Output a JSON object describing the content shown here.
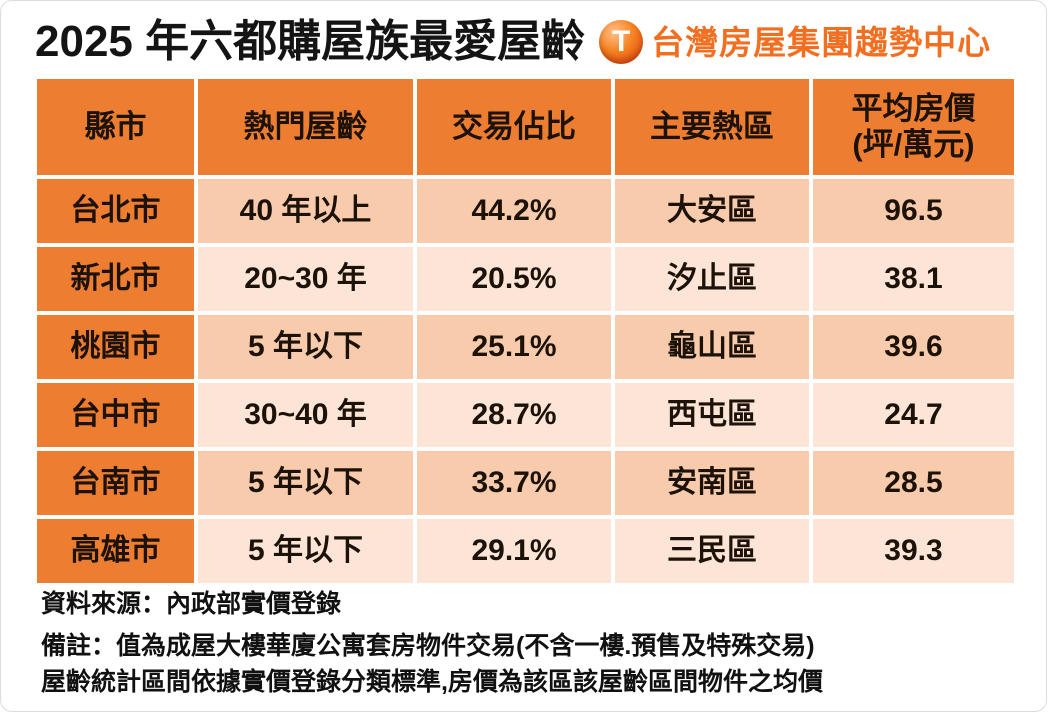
{
  "title": "2025 年六都購屋族最愛屋齡",
  "logo": {
    "icon_letter": "T",
    "text": "台灣房屋集團趨勢中心",
    "brand_color": "#f26f21"
  },
  "colors": {
    "header_bg": "#ed7d31",
    "first_column_bg": "#ed7d31",
    "row_odd_bg": "#f8cbad",
    "row_even_bg": "#fce4d6",
    "text": "#1c1208"
  },
  "table": {
    "columns": [
      {
        "label": "縣市"
      },
      {
        "label": "熱門屋齡"
      },
      {
        "label": "交易佔比"
      },
      {
        "label": "主要熱區"
      },
      {
        "label": "平均房價",
        "sublabel": "(坪/萬元)"
      }
    ],
    "rows": [
      {
        "city": "台北市",
        "age": "40 年以上",
        "share": "44.2%",
        "district": "大安區",
        "price": "96.5"
      },
      {
        "city": "新北市",
        "age": "20~30 年",
        "share": "20.5%",
        "district": "汐止區",
        "price": "38.1"
      },
      {
        "city": "桃園市",
        "age": "5 年以下",
        "share": "25.1%",
        "district": "龜山區",
        "price": "39.6"
      },
      {
        "city": "台中市",
        "age": "30~40 年",
        "share": "28.7%",
        "district": "西屯區",
        "price": "24.7"
      },
      {
        "city": "台南市",
        "age": "5 年以下",
        "share": "33.7%",
        "district": "安南區",
        "price": "28.5"
      },
      {
        "city": "高雄市",
        "age": "5 年以下",
        "share": "29.1%",
        "district": "三民區",
        "price": "39.3"
      }
    ]
  },
  "footnotes": {
    "source": "資料來源：內政部實價登錄",
    "note1": "備註：值為成屋大樓華廈公寓套房物件交易(不含一樓.預售及特殊交易)",
    "note2": "屋齡統計區間依據實價登錄分類標準,房價為該區該屋齡區間物件之均價"
  },
  "chart_data": {
    "type": "table",
    "title": "2025 年六都購屋族最愛屋齡",
    "columns": [
      "縣市",
      "熱門屋齡",
      "交易佔比",
      "主要熱區",
      "平均房價(坪/萬元)"
    ],
    "rows": [
      [
        "台北市",
        "40 年以上",
        "44.2%",
        "大安區",
        96.5
      ],
      [
        "新北市",
        "20~30 年",
        "20.5%",
        "汐止區",
        38.1
      ],
      [
        "桃園市",
        "5 年以下",
        "25.1%",
        "龜山區",
        39.6
      ],
      [
        "台中市",
        "30~40 年",
        "28.7%",
        "西屯區",
        24.7
      ],
      [
        "台南市",
        "5 年以下",
        "33.7%",
        "安南區",
        28.5
      ],
      [
        "高雄市",
        "5 年以下",
        "29.1%",
        "三民區",
        39.3
      ]
    ],
    "source": "內政部實價登錄"
  }
}
